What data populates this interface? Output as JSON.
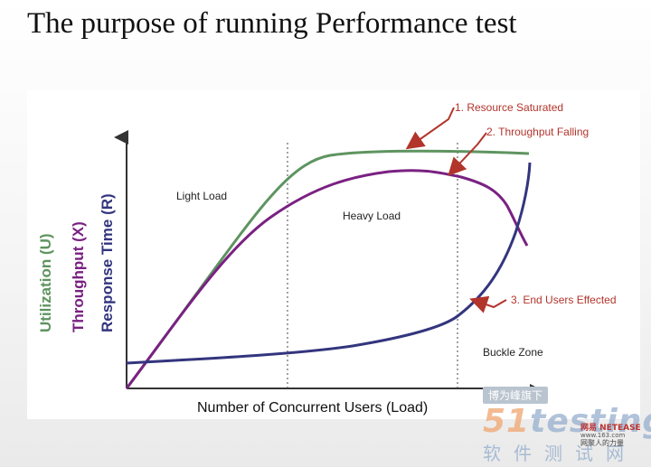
{
  "slide": {
    "title": "The purpose of running Performance test"
  },
  "diagram": {
    "axis_labels": {
      "utilization": "Utilization (U)",
      "throughput": "Throughput (X)",
      "response_time": "Response Time (R)",
      "x_axis": "Number of  Concurrent Users (Load)"
    },
    "zones": {
      "light": "Light Load",
      "heavy": "Heavy Load",
      "buckle": "Buckle Zone"
    },
    "annotations": {
      "a1": "1. Resource Saturated",
      "a2": "2. Throughput Falling",
      "a3": "3. End Users Effected"
    },
    "colors": {
      "utilization": "#5e9460",
      "throughput": "#7a2182",
      "response_time": "#33357e",
      "annotation": "#b2342b",
      "divider": "#444444"
    }
  },
  "watermark": {
    "badge": "博为峰旗下",
    "logo_prefix": "51",
    "logo_text": "testing",
    "subtitle": "软件测试网",
    "netease_line1": "网易 NETEASE",
    "netease_line2": "www.163.com",
    "netease_line3": "网聚人的力量"
  }
}
